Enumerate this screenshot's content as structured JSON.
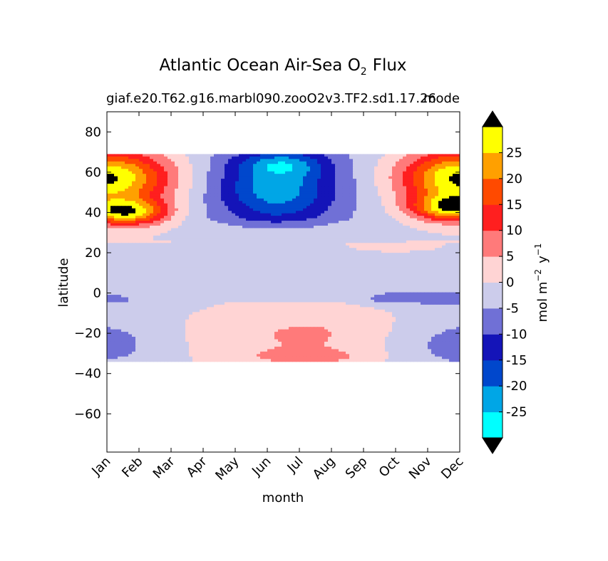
{
  "chart_data": {
    "type": "heatmap",
    "title": "Atlantic Ocean Air-Sea O",
    "title_subscript": "2",
    "title_suffix": "Flux",
    "subtitle_left": "giaf.e20.T62.g16.marbl090.zooO2v3.TF2.sd1.17.26",
    "subtitle_right": "mode",
    "xlabel": "month",
    "ylabel": "latitude",
    "x_ticks": [
      "Jan",
      "Feb",
      "Mar",
      "Apr",
      "May",
      "Jun",
      "Jul",
      "Aug",
      "Sep",
      "Oct",
      "Nov",
      "Dec"
    ],
    "y_ticks": [
      "80",
      "60",
      "40",
      "20",
      "0",
      "−20",
      "−40",
      "−60"
    ],
    "y_tick_values": [
      80,
      60,
      40,
      20,
      0,
      -20,
      -40,
      -60
    ],
    "ylim": [
      -79,
      90
    ],
    "data_lat_range": [
      -34,
      69
    ],
    "colorbar": {
      "label": "mol m",
      "label_sup1": "−2",
      "label_mid": "y",
      "label_sup2": "−1",
      "ticks": [
        "25",
        "20",
        "15",
        "10",
        "5",
        "0",
        "-5",
        "-10",
        "-15",
        "-20",
        "-25"
      ],
      "levels": [
        -30,
        -25,
        -20,
        -15,
        -10,
        -5,
        0,
        5,
        10,
        15,
        20,
        25,
        30
      ],
      "colors": [
        "#00ffff",
        "#00a6e6",
        "#0047cc",
        "#1414b8",
        "#7070d6",
        "#cccceb",
        "#ffd4d4",
        "#ff7a7a",
        "#ff1f1f",
        "#ff4a00",
        "#ffa000",
        "#ffff00"
      ],
      "extend_color": "#000000"
    },
    "grid": false,
    "description_regions": [
      {
        "label": "Jun–Jul 60-67N",
        "value": -22
      },
      {
        "label": "May–Jul 45-60N",
        "value": -17
      },
      {
        "label": "Jan–Feb 55-68N",
        "value": 32
      },
      {
        "label": "Nov–Dec 55-68N",
        "value": 32
      },
      {
        "label": "Jul–Aug 20S",
        "value": 7
      }
    ]
  }
}
